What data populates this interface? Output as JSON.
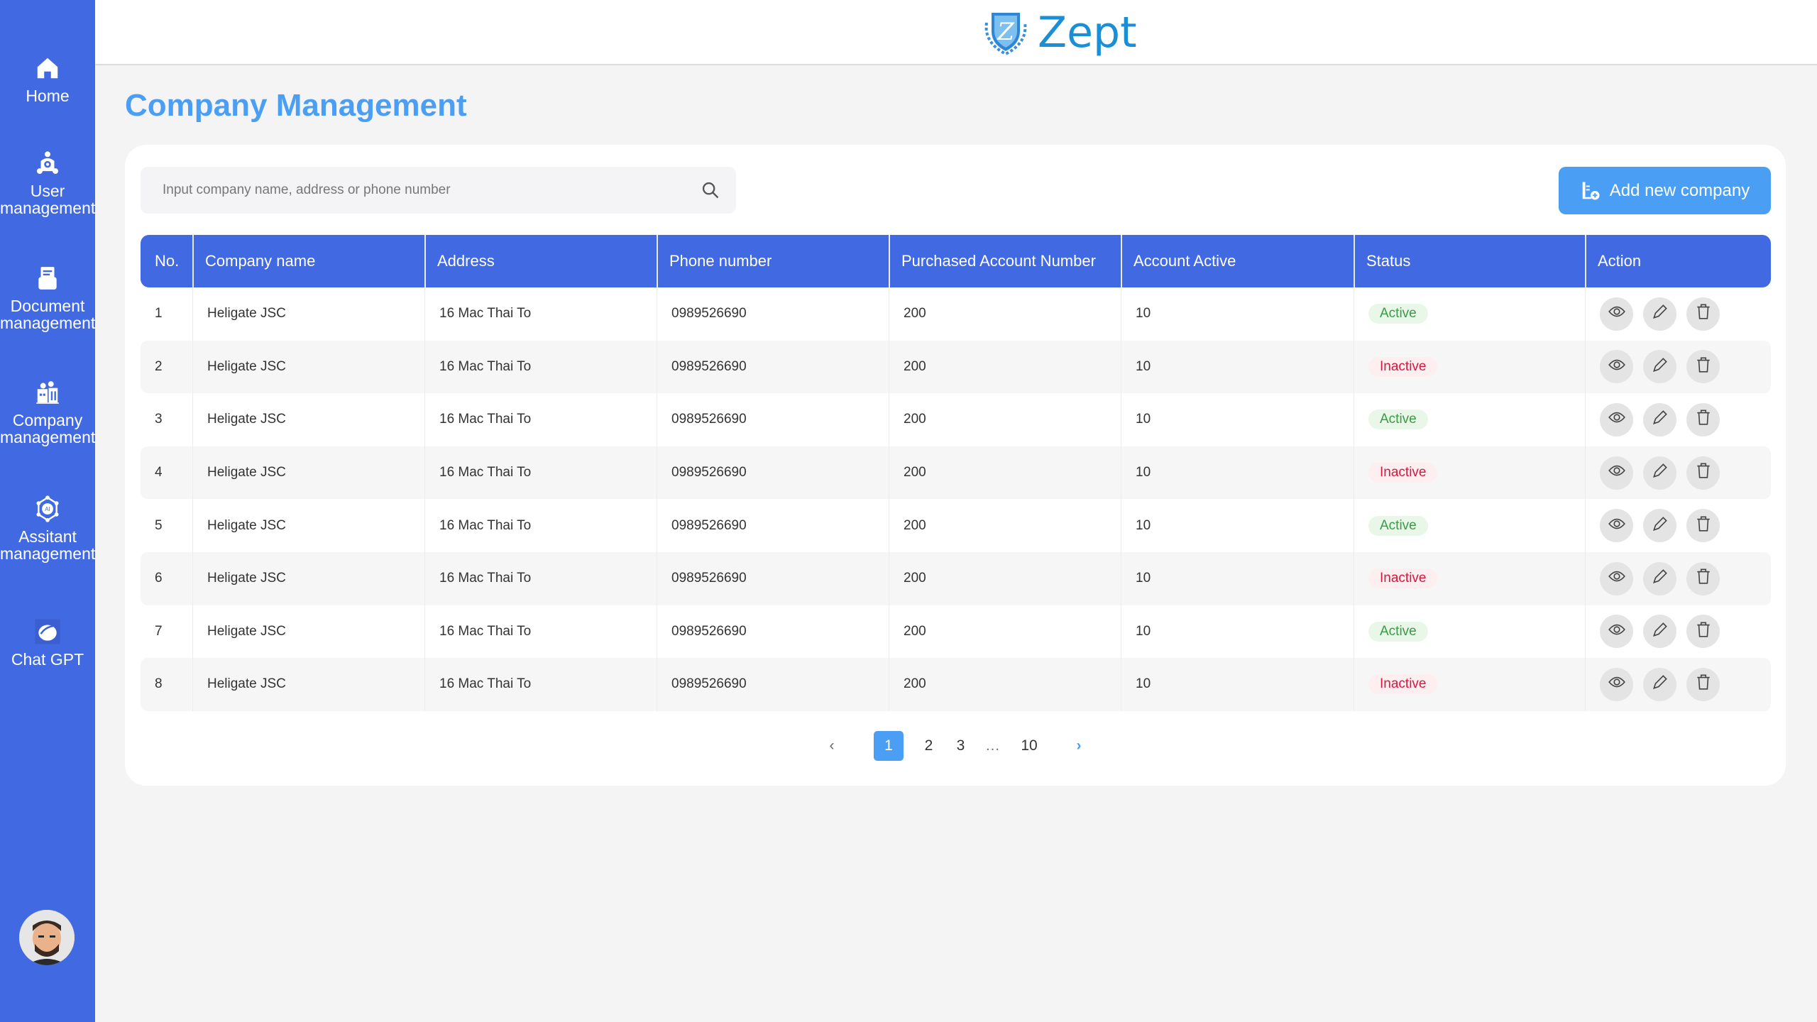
{
  "app": {
    "logo_text": "Zept"
  },
  "sidebar": {
    "items": [
      {
        "label_1": "Home",
        "label_2": ""
      },
      {
        "label_1": "User",
        "label_2": "management"
      },
      {
        "label_1": "Document",
        "label_2": "management"
      },
      {
        "label_1": "Company",
        "label_2": "management"
      },
      {
        "label_1": "Assitant",
        "label_2": "management"
      },
      {
        "label_1": "Chat GPT",
        "label_2": ""
      }
    ]
  },
  "page": {
    "title": "Company Management"
  },
  "search": {
    "placeholder": "Input company name, address or phone number",
    "value": ""
  },
  "toolbar": {
    "add_label": "Add new company"
  },
  "table": {
    "headers": [
      "No.",
      "Company name",
      "Address",
      "Phone number",
      "Purchased Account Number",
      "Account Active",
      "Status",
      "Action"
    ],
    "rows": [
      {
        "no": "1",
        "name": "Heligate JSC",
        "address": "16 Mac Thai To",
        "phone": "0989526690",
        "purchased": "200",
        "active": "10",
        "status": "Active"
      },
      {
        "no": "2",
        "name": "Heligate JSC",
        "address": "16 Mac Thai To",
        "phone": "0989526690",
        "purchased": "200",
        "active": "10",
        "status": "Inactive"
      },
      {
        "no": "3",
        "name": "Heligate JSC",
        "address": "16 Mac Thai To",
        "phone": "0989526690",
        "purchased": "200",
        "active": "10",
        "status": "Active"
      },
      {
        "no": "4",
        "name": "Heligate JSC",
        "address": "16 Mac Thai To",
        "phone": "0989526690",
        "purchased": "200",
        "active": "10",
        "status": "Inactive"
      },
      {
        "no": "5",
        "name": "Heligate JSC",
        "address": "16 Mac Thai To",
        "phone": "0989526690",
        "purchased": "200",
        "active": "10",
        "status": "Active"
      },
      {
        "no": "6",
        "name": "Heligate JSC",
        "address": "16 Mac Thai To",
        "phone": "0989526690",
        "purchased": "200",
        "active": "10",
        "status": "Inactive"
      },
      {
        "no": "7",
        "name": "Heligate JSC",
        "address": "16 Mac Thai To",
        "phone": "0989526690",
        "purchased": "200",
        "active": "10",
        "status": "Active"
      },
      {
        "no": "8",
        "name": "Heligate JSC",
        "address": "16 Mac Thai To",
        "phone": "0989526690",
        "purchased": "200",
        "active": "10",
        "status": "Inactive"
      }
    ]
  },
  "pagination": {
    "prev": "‹",
    "next": "›",
    "pages": [
      "1",
      "2",
      "3",
      "…",
      "10"
    ],
    "current": "1"
  },
  "colors": {
    "sidebar": "#4169e1",
    "accent": "#4a9ff5",
    "active": "#3c9a47",
    "inactive": "#d6183f"
  }
}
